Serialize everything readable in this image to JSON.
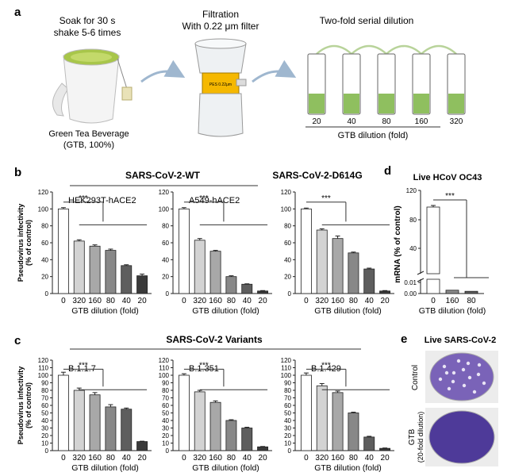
{
  "panel_a": {
    "label": "a",
    "step1": [
      "Soak for 30 s",
      "shake 5-6 times"
    ],
    "step2": [
      "Filtration",
      "With 0.22 μm filter"
    ],
    "step3": "Two-fold serial dilution",
    "cup_caption": [
      "Green Tea Beverage",
      "(GTB, 100%)"
    ],
    "filter_label": "PES 0.22μm",
    "tube_labels": [
      "20",
      "40",
      "80",
      "160",
      "320"
    ],
    "tube_axis": "GTB dilution (fold)"
  },
  "panel_b": {
    "label": "b",
    "wt_header": "SARS-CoV-2-WT",
    "d614g_header": "SARS-CoV-2-D614G"
  },
  "panel_c": {
    "label": "c",
    "header": "SARS-CoV-2 Variants"
  },
  "panel_d": {
    "label": "d",
    "header": "Live HCoV OC43"
  },
  "panel_e": {
    "label": "e",
    "header": "Live SARS-CoV-2",
    "control_label": "Control",
    "gtb_label": [
      "GTB",
      "(20-fold dilution)"
    ]
  },
  "colors": {
    "bars": [
      "#ffffff",
      "#d3d3d3",
      "#a8a8a8",
      "#888888",
      "#5e5e5e",
      "#3a3a3a"
    ],
    "tea": "#8fbf5f",
    "filter_band": "#f5b800",
    "stain": "#5a3f9e"
  },
  "chart_data": [
    {
      "id": "b1",
      "type": "bar",
      "title": "HEK293T-hACE2",
      "ylabel": "Pseudovirus infectivity (% of control)",
      "xlabel": "GTB dilution (fold)",
      "categories": [
        "0",
        "320",
        "160",
        "80",
        "40",
        "20"
      ],
      "values": [
        100,
        62,
        56,
        51,
        33,
        21
      ],
      "errors": [
        1.5,
        1.5,
        1.5,
        1.5,
        1,
        2
      ],
      "ylim": [
        0,
        120
      ],
      "yticks": [
        0,
        20,
        40,
        60,
        80,
        100,
        120
      ],
      "significance": "***"
    },
    {
      "id": "b2",
      "type": "bar",
      "title": "A549-hACE2",
      "xlabel": "GTB dilution (fold)",
      "categories": [
        "0",
        "320",
        "160",
        "80",
        "40",
        "20"
      ],
      "values": [
        100,
        63,
        50,
        20,
        11,
        3
      ],
      "errors": [
        1.5,
        2,
        1,
        1,
        0.5,
        0.5
      ],
      "ylim": [
        0,
        120
      ],
      "yticks": [
        0,
        20,
        40,
        60,
        80,
        100,
        120
      ],
      "significance": "***"
    },
    {
      "id": "b3",
      "type": "bar",
      "title": "",
      "xlabel": "GTB dilution (fold)",
      "categories": [
        "0",
        "320",
        "160",
        "80",
        "40",
        "20"
      ],
      "values": [
        100,
        75,
        65,
        48,
        29,
        3
      ],
      "errors": [
        1,
        1.5,
        3,
        1,
        1,
        0.5
      ],
      "ylim": [
        0,
        120
      ],
      "yticks": [
        0,
        20,
        40,
        60,
        80,
        100,
        120
      ],
      "significance": "***"
    },
    {
      "id": "c1",
      "type": "bar",
      "title": "B.1.1.7",
      "ylabel": "Pseudovirus infectivity (% of control)",
      "xlabel": "GTB dilution (fold)",
      "categories": [
        "0",
        "320",
        "160",
        "80",
        "40",
        "20"
      ],
      "values": [
        100,
        80,
        74,
        58,
        55,
        12
      ],
      "errors": [
        4,
        3,
        3,
        3,
        1.5,
        0.5
      ],
      "ylim": [
        0,
        120
      ],
      "yticks": [
        0,
        10,
        20,
        30,
        40,
        50,
        60,
        70,
        80,
        90,
        100,
        110,
        120
      ],
      "significance": "***"
    },
    {
      "id": "c2",
      "type": "bar",
      "title": "B.1.351",
      "xlabel": "GTB dilution (fold)",
      "categories": [
        "0",
        "320",
        "160",
        "80",
        "40",
        "20"
      ],
      "values": [
        100,
        78,
        64,
        40,
        30,
        5
      ],
      "errors": [
        2,
        2,
        2,
        1,
        1,
        0.5
      ],
      "ylim": [
        0,
        120
      ],
      "yticks": [
        0,
        10,
        20,
        30,
        40,
        50,
        60,
        70,
        80,
        90,
        100,
        110,
        120
      ],
      "significance": "***"
    },
    {
      "id": "c3",
      "type": "bar",
      "title": "B.1.429",
      "xlabel": "GTB dilution (fold)",
      "categories": [
        "0",
        "320",
        "160",
        "80",
        "40",
        "20"
      ],
      "values": [
        100,
        86,
        77,
        50,
        18,
        3
      ],
      "errors": [
        3,
        3,
        2,
        1,
        1,
        0.5
      ],
      "ylim": [
        0,
        120
      ],
      "yticks": [
        0,
        10,
        20,
        30,
        40,
        50,
        60,
        70,
        80,
        90,
        100,
        110,
        120
      ],
      "significance": "***"
    },
    {
      "id": "d",
      "type": "bar",
      "title": "",
      "ylabel": "mRNA (% of control)",
      "xlabel": "GTB dilution (fold)",
      "categories": [
        "0",
        "160",
        "80"
      ],
      "values": [
        100,
        0.003,
        0.002
      ],
      "ylim": [
        0,
        120
      ],
      "yticks": [
        "0.00",
        "0.01",
        "40",
        "80",
        "120"
      ],
      "axis_break": true,
      "significance": "***"
    }
  ]
}
